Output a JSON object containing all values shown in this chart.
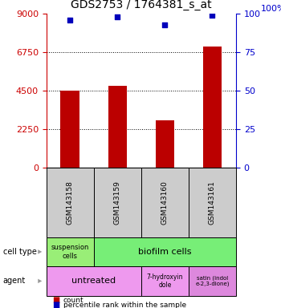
{
  "title": "GDS2753 / 1764381_s_at",
  "samples": [
    "GSM143158",
    "GSM143159",
    "GSM143160",
    "GSM143161"
  ],
  "counts": [
    4500,
    4800,
    2800,
    7100
  ],
  "percentile_ranks": [
    96,
    98,
    93,
    99
  ],
  "ylim_left": [
    0,
    9000
  ],
  "ylim_right": [
    0,
    100
  ],
  "yticks_left": [
    0,
    2250,
    4500,
    6750,
    9000
  ],
  "yticks_right": [
    0,
    25,
    50,
    75,
    100
  ],
  "bar_color": "#bb0000",
  "dot_color": "#0000bb",
  "bar_width": 0.4,
  "left_axis_color": "#cc0000",
  "right_axis_color": "#0000cc",
  "background_color": "#ffffff",
  "title_fontsize": 10,
  "suspension_color": "#99ee77",
  "biofilm_color": "#77ee77",
  "untreated_color": "#ee99ee",
  "hydroxyin_color": "#ee99ee",
  "isatin_color": "#dd88dd",
  "gray_color": "#cccccc"
}
